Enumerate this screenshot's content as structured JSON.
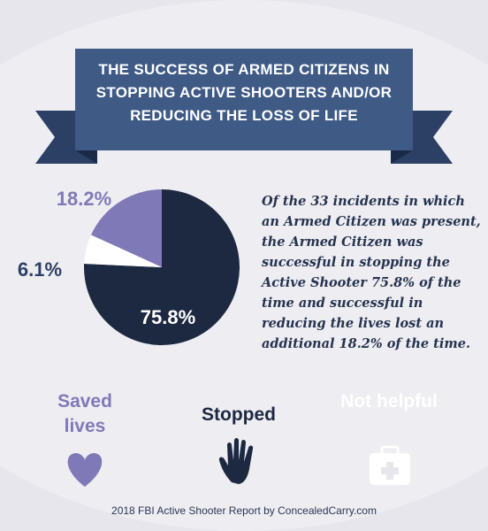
{
  "chart_data": {
    "type": "pie",
    "title": "THE SUCCESS OF ARMED CITIZENS IN STOPPING ACTIVE SHOOTERS AND/OR REDUCING THE LOSS OF LIFE",
    "categories": [
      "Saved lives",
      "Stopped",
      "Not helpful"
    ],
    "values": [
      18.2,
      75.8,
      6.1
    ],
    "value_labels": [
      "18.2%",
      "75.8%",
      "6.1%"
    ],
    "colors": [
      "#8079b8",
      "#1d2841",
      "#ffffff"
    ],
    "annotation": "Of the 33 incidents in which an Armed Citizen was present, the Armed Citizen was successful in stopping the Active Shooter 75.8% of the time and successful in reducing the lives lost an additional 18.2% of the time.",
    "source": "2018 FBI Active Shooter Report by ConcealedCarry.com"
  }
}
